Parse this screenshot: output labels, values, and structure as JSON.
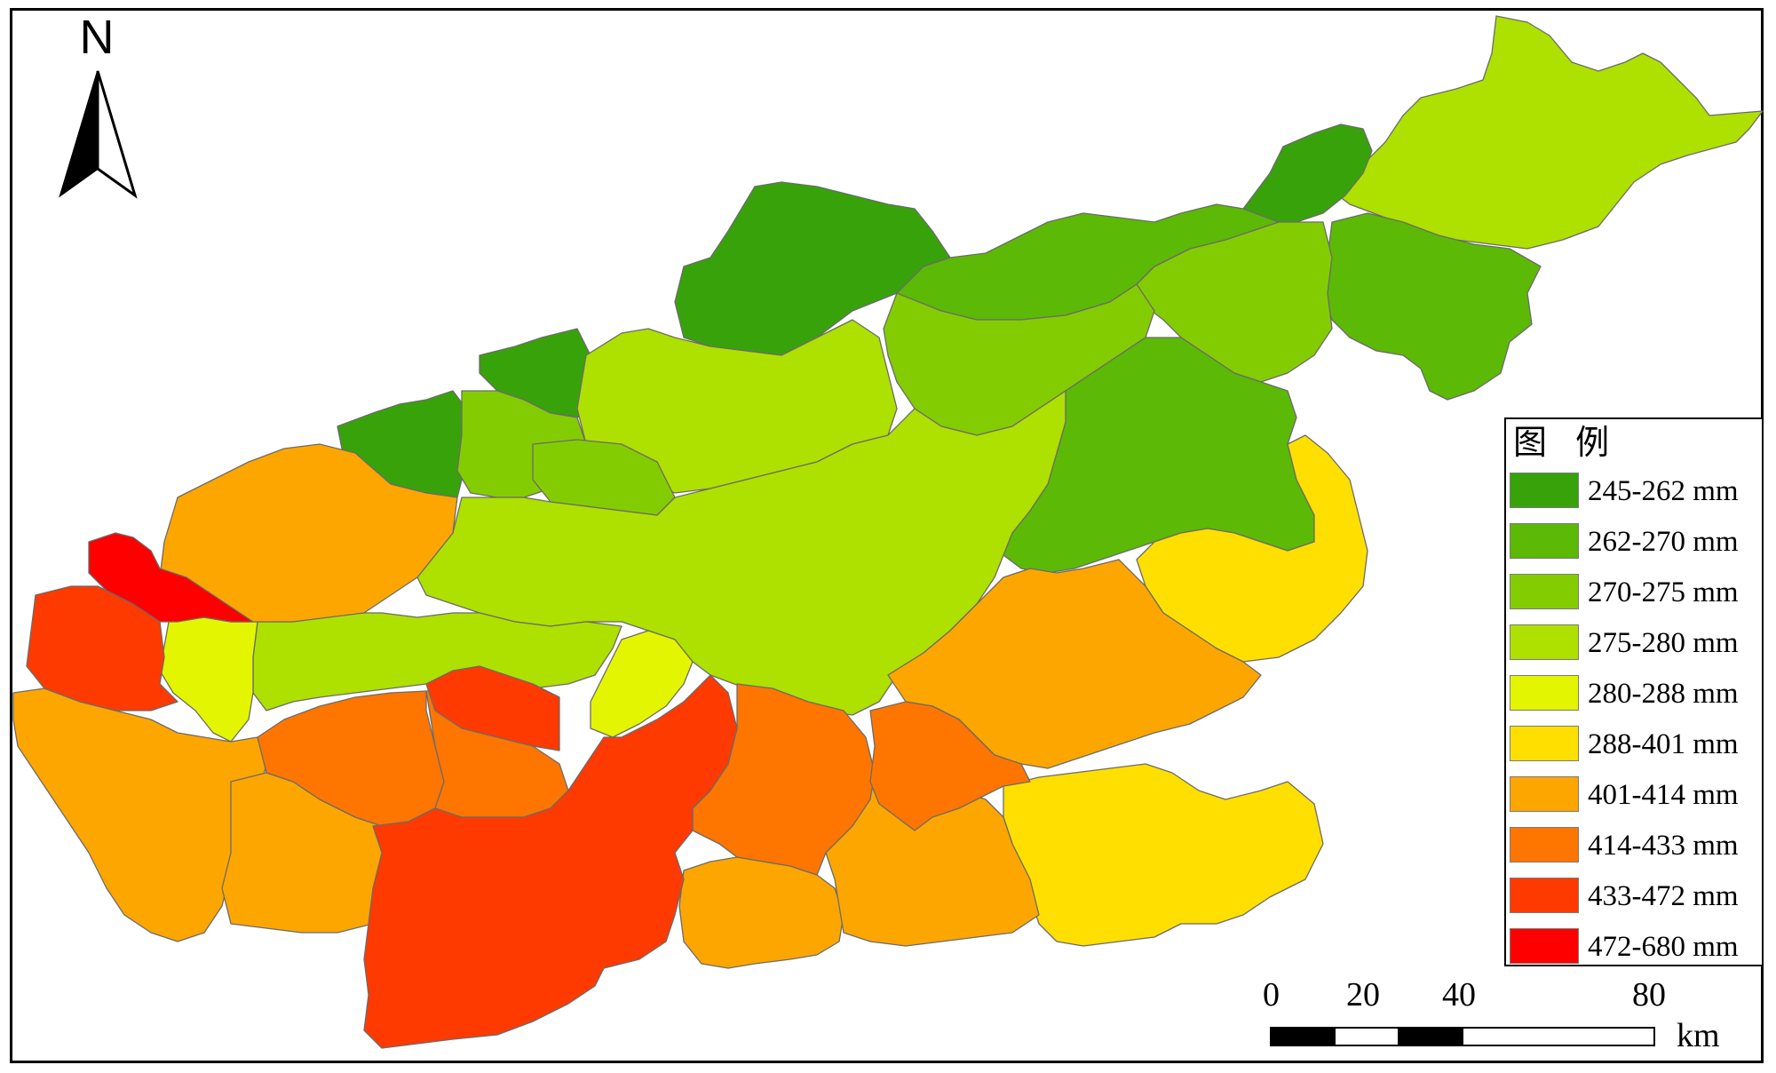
{
  "north_label": "N",
  "legend": {
    "title": "图 例",
    "items": [
      {
        "label": "245-262 mm",
        "color": "#38a20a"
      },
      {
        "label": "262-270 mm",
        "color": "#5cb905"
      },
      {
        "label": "270-275 mm",
        "color": "#84cc02"
      },
      {
        "label": "275-280 mm",
        "color": "#aee000"
      },
      {
        "label": "280-288 mm",
        "color": "#e4f500"
      },
      {
        "label": "288-401 mm",
        "color": "#fedf00"
      },
      {
        "label": "401-414 mm",
        "color": "#fea600"
      },
      {
        "label": "414-433 mm",
        "color": "#fe7500"
      },
      {
        "label": "433-472 mm",
        "color": "#fe3a00"
      },
      {
        "label": "472-680 mm",
        "color": "#fe0000"
      }
    ]
  },
  "scale_bar": {
    "ticks": [
      "0",
      "20",
      "40",
      "80"
    ],
    "unit": "km"
  }
}
